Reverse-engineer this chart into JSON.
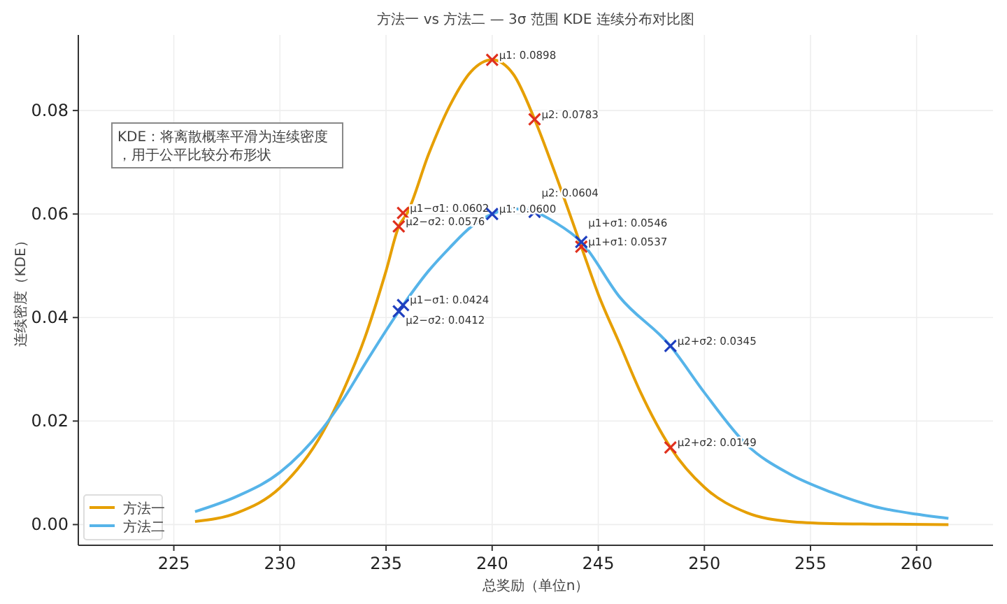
{
  "chart_data": {
    "type": "line",
    "title": "方法一 vs 方法二 — 3σ 范围 KDE 连续分布对比图",
    "xlabel": "总奖励（单位n）",
    "ylabel": "连续密度（KDE）",
    "annotations": [
      "KDE：将离散概率平滑为连续密度，用于公平比较分布形状"
    ],
    "xlim": [
      220.5,
      263.6
    ],
    "ylim": [
      -0.004,
      0.0946
    ],
    "xticks": [
      225,
      230,
      235,
      240,
      245,
      250,
      255,
      260
    ],
    "yticks": [
      {
        "value": 0,
        "label": "0.00"
      },
      {
        "value": 0.02,
        "label": "0.02"
      },
      {
        "value": 0.04,
        "label": "0.04"
      },
      {
        "value": 0.06,
        "label": "0.06"
      },
      {
        "value": 0.08,
        "label": "0.08"
      }
    ],
    "grid": true,
    "legend": "bottom left",
    "series": [
      {
        "name": "方法一",
        "color": "#e69f00",
        "x": [
          226,
          228,
          230,
          232,
          233,
          234,
          235,
          235.6,
          236,
          237,
          238,
          239,
          240,
          241,
          242,
          243,
          244.2,
          245,
          246,
          247,
          248.4,
          250,
          252,
          254,
          256,
          258,
          261.5
        ],
        "values": [
          0.0006,
          0.0023,
          0.0071,
          0.0177,
          0.026,
          0.0361,
          0.049,
          0.0576,
          0.0602,
          0.0715,
          0.0809,
          0.0875,
          0.0898,
          0.087,
          0.0783,
          0.0675,
          0.0537,
          0.0445,
          0.035,
          0.0255,
          0.0149,
          0.0072,
          0.0023,
          0.0006,
          0.0002,
          0.0001,
          0.0
        ]
      },
      {
        "name": "方法二",
        "color": "#56b4e9",
        "x": [
          226,
          228,
          230,
          232,
          233,
          234,
          235.6,
          237,
          238,
          239,
          240,
          241,
          242,
          243,
          244.2,
          246,
          248.4,
          250,
          252,
          254,
          256,
          258,
          260,
          261.5
        ],
        "values": [
          0.0025,
          0.0055,
          0.0101,
          0.0185,
          0.0243,
          0.031,
          0.0412,
          0.049,
          0.0535,
          0.0575,
          0.06,
          0.061,
          0.0604,
          0.0583,
          0.0546,
          0.044,
          0.0345,
          0.0255,
          0.0154,
          0.0098,
          0.0062,
          0.0035,
          0.002,
          0.0012
        ]
      },
      {
        "type": "scatter",
        "marker": "cross",
        "color": "#e0301e",
        "x": [
          240,
          242,
          235.8,
          235.6,
          244.2,
          248.4
        ],
        "values": [
          0.0898,
          0.0783,
          0.0602,
          0.0576,
          0.0537,
          0.0149
        ],
        "value_labels": [
          "μ1: 0.0898",
          "μ2: 0.0783",
          "μ1−σ1: 0.0602",
          "μ2−σ2: 0.0576",
          "μ1+σ1: 0.0537",
          "μ2+σ2: 0.0149"
        ]
      },
      {
        "type": "scatter",
        "marker": "cross",
        "color": "#1f3fbf",
        "x": [
          240,
          242,
          235.8,
          235.6,
          244.2,
          248.4
        ],
        "values": [
          0.06,
          0.0604,
          0.0424,
          0.0412,
          0.0546,
          0.0345
        ],
        "value_labels": [
          "μ1: 0.0600",
          "μ2: 0.0604",
          "μ1−σ1: 0.0424",
          "μ2−σ2: 0.0412",
          "μ1+σ1: 0.0546",
          "μ2+σ2: 0.0345"
        ]
      }
    ]
  }
}
